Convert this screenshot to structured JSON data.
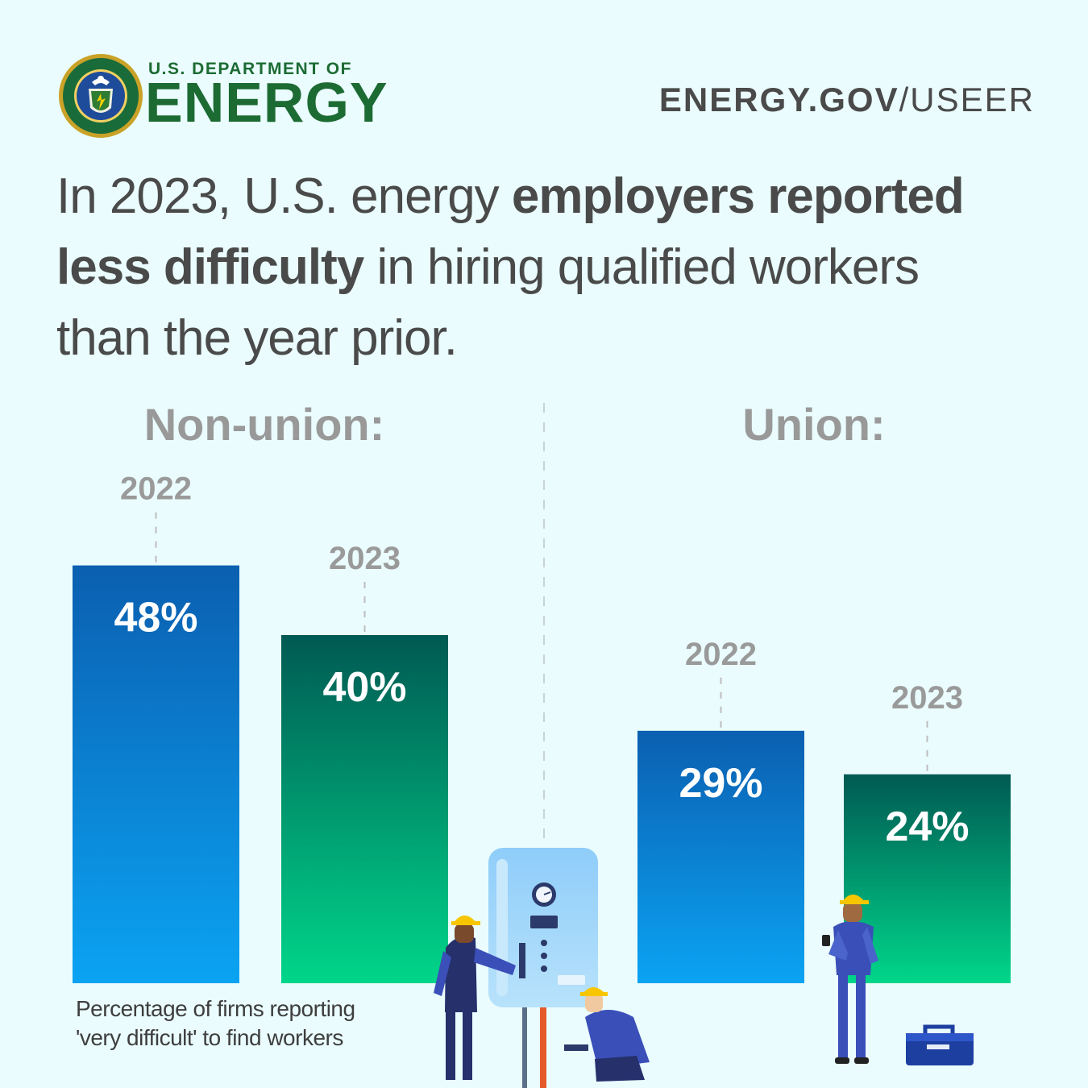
{
  "header": {
    "org_top": "U.S. DEPARTMENT OF",
    "org_main": "ENERGY",
    "url_bold": "ENERGY.GOV",
    "url_rest": "/USEER"
  },
  "headline": {
    "part1": "In 2023, U.S. energy ",
    "bold1": "employers reported",
    "bold2": "less difficulty",
    "part2": " in hiring qualified workers",
    "part3": "than the year prior."
  },
  "caption": {
    "line1": "Percentage of firms reporting",
    "line2": "'very difficult' to find workers"
  },
  "colors": {
    "bar_2022_top": "#0b5fb0",
    "bar_2022_bottom": "#0ba3f3",
    "bar_2023_top": "#005a53",
    "bar_2023_bottom": "#00d68a",
    "group_label": "#999999",
    "year_label": "#9a9a9a"
  },
  "chart_data": {
    "type": "bar",
    "groups": [
      "Non-union:",
      "Union:"
    ],
    "categories": [
      "2022",
      "2023"
    ],
    "series": [
      {
        "group": "Non-union:",
        "values": [
          48,
          40
        ],
        "labels": [
          "48%",
          "40%"
        ]
      },
      {
        "group": "Union:",
        "values": [
          29,
          24
        ],
        "labels": [
          "29%",
          "24%"
        ]
      }
    ],
    "ylim": [
      0,
      100
    ]
  }
}
